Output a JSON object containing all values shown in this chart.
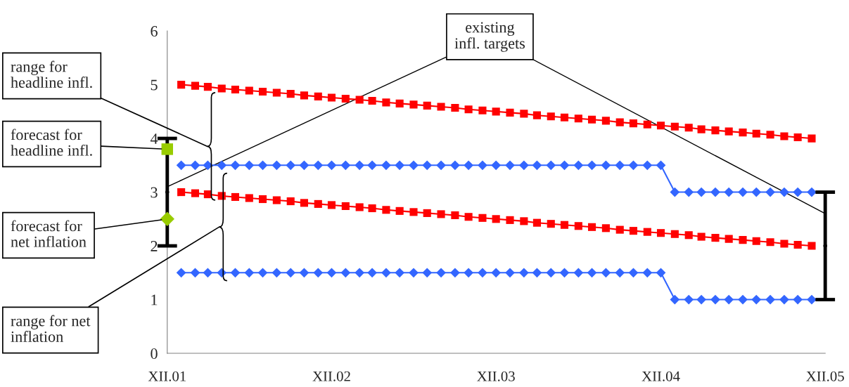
{
  "chart_data": {
    "type": "line",
    "x": [
      "2002-01",
      "2002-02",
      "2002-03",
      "2002-04",
      "2002-05",
      "2002-06",
      "2002-07",
      "2002-08",
      "2002-09",
      "2002-10",
      "2002-11",
      "2002-12",
      "2003-01",
      "2003-02",
      "2003-03",
      "2003-04",
      "2003-05",
      "2003-06",
      "2003-07",
      "2003-08",
      "2003-09",
      "2003-10",
      "2003-11",
      "2003-12",
      "2004-01",
      "2004-02",
      "2004-03",
      "2004-04",
      "2004-05",
      "2004-06",
      "2004-07",
      "2004-08",
      "2004-09",
      "2004-10",
      "2004-11",
      "2004-12",
      "2005-01",
      "2005-02",
      "2005-03",
      "2005-04",
      "2005-05",
      "2005-06",
      "2005-07",
      "2005-08",
      "2005-09",
      "2005-10",
      "2005-11"
    ],
    "series": [
      {
        "color": "#ff0000",
        "marker": "square",
        "values": [
          5.0,
          4.98,
          4.96,
          4.93,
          4.91,
          4.89,
          4.87,
          4.85,
          4.83,
          4.8,
          4.78,
          4.76,
          4.74,
          4.72,
          4.7,
          4.67,
          4.65,
          4.63,
          4.61,
          4.59,
          4.57,
          4.54,
          4.52,
          4.5,
          4.48,
          4.46,
          4.43,
          4.41,
          4.39,
          4.37,
          4.35,
          4.33,
          4.3,
          4.28,
          4.26,
          4.24,
          4.22,
          4.2,
          4.17,
          4.15,
          4.13,
          4.11,
          4.09,
          4.07,
          4.04,
          4.02,
          4.0
        ]
      },
      {
        "color": "#ff0000",
        "marker": "square",
        "values": [
          3.0,
          2.98,
          2.96,
          2.93,
          2.91,
          2.89,
          2.87,
          2.85,
          2.83,
          2.8,
          2.78,
          2.76,
          2.74,
          2.72,
          2.7,
          2.67,
          2.65,
          2.63,
          2.61,
          2.59,
          2.57,
          2.54,
          2.52,
          2.5,
          2.48,
          2.46,
          2.43,
          2.41,
          2.39,
          2.37,
          2.35,
          2.33,
          2.3,
          2.28,
          2.26,
          2.24,
          2.22,
          2.2,
          2.17,
          2.15,
          2.13,
          2.11,
          2.09,
          2.07,
          2.04,
          2.02,
          2.0
        ]
      },
      {
        "color": "#3366ff",
        "marker": "diamond",
        "values": [
          3.5,
          3.5,
          3.5,
          3.5,
          3.5,
          3.5,
          3.5,
          3.5,
          3.5,
          3.5,
          3.5,
          3.5,
          3.5,
          3.5,
          3.5,
          3.5,
          3.5,
          3.5,
          3.5,
          3.5,
          3.5,
          3.5,
          3.5,
          3.5,
          3.5,
          3.5,
          3.5,
          3.5,
          3.5,
          3.5,
          3.5,
          3.5,
          3.5,
          3.5,
          3.5,
          3.5,
          3.0,
          3.0,
          3.0,
          3.0,
          3.0,
          3.0,
          3.0,
          3.0,
          3.0,
          3.0,
          3.0
        ]
      },
      {
        "color": "#3366ff",
        "marker": "diamond",
        "values": [
          1.5,
          1.5,
          1.5,
          1.5,
          1.5,
          1.5,
          1.5,
          1.5,
          1.5,
          1.5,
          1.5,
          1.5,
          1.5,
          1.5,
          1.5,
          1.5,
          1.5,
          1.5,
          1.5,
          1.5,
          1.5,
          1.5,
          1.5,
          1.5,
          1.5,
          1.5,
          1.5,
          1.5,
          1.5,
          1.5,
          1.5,
          1.5,
          1.5,
          1.5,
          1.5,
          1.5,
          1.0,
          1.0,
          1.0,
          1.0,
          1.0,
          1.0,
          1.0,
          1.0,
          1.0,
          1.0,
          1.0
        ]
      },
      {
        "type": "scatter",
        "color": "#000000",
        "marker": "circle",
        "x": [
          "2001-12",
          "2005-12"
        ],
        "values": [
          3,
          2
        ],
        "errors": [
          1,
          1
        ]
      },
      {
        "type": "scatter",
        "color": "#99cc00",
        "marker": "square",
        "x": [
          "2001-12"
        ],
        "values": [
          3.8
        ]
      },
      {
        "type": "scatter",
        "color": "#99cc00",
        "marker": "diamond",
        "x": [
          "2001-12"
        ],
        "values": [
          2.5
        ]
      }
    ],
    "xlim": [
      "2001-12",
      "2005-12"
    ],
    "xticks": [
      {
        "value": "2001-12",
        "label": "XII.01"
      },
      {
        "value": "2002-12",
        "label": "XII.02"
      },
      {
        "value": "2003-12",
        "label": "XII.03"
      },
      {
        "value": "2004-12",
        "label": "XII.04"
      },
      {
        "value": "2005-12",
        "label": "XII.05"
      }
    ],
    "ylim": [
      0,
      6
    ],
    "yticks": [
      0,
      1,
      2,
      3,
      4,
      5,
      6
    ],
    "line_style": "solid",
    "annotations": [
      "range for\nheadline infl.",
      "forecast for\nheadline infl.",
      {
        "text": "forecast for\nnet inflation",
        "x": "2001-12",
        "y": 2.5
      },
      "range for net\ninflation",
      {
        "text": "existing\ninfl. targets",
        "x": "2001-12",
        "y": 3.1
      }
    ]
  }
}
